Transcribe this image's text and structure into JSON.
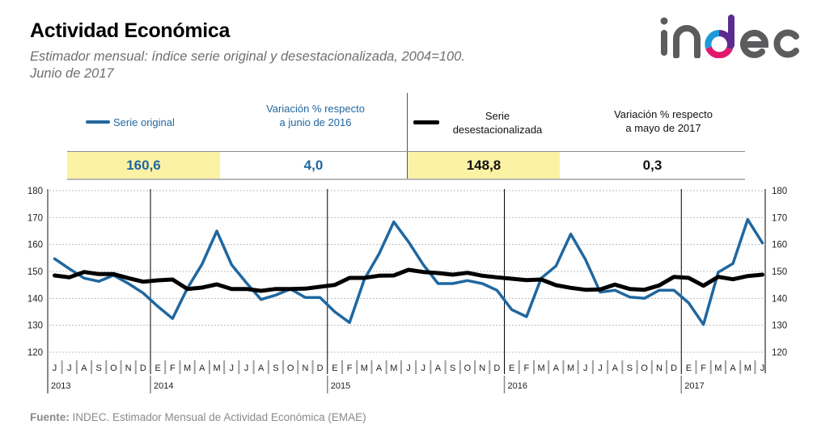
{
  "header": {
    "title": "Actividad Económica",
    "subtitle_line1": "Estimador mensual: índice serie original y desestacionalizada, 2004=100.",
    "subtitle_line2": "Junio de 2017",
    "logo_text": "indec"
  },
  "summary": {
    "original": {
      "legend_label": "Serie original",
      "value": "160,6",
      "variation_label_line1": "Variación % respecto",
      "variation_label_line2": "a junio de 2016",
      "variation_value": "4,0"
    },
    "seasonally_adjusted": {
      "legend_label_line1": "Serie",
      "legend_label_line2": "desestacionalizada",
      "value": "148,8",
      "variation_label_line1": "Variación % respecto",
      "variation_label_line2": "a mayo de 2017",
      "variation_value": "0,3"
    }
  },
  "colors": {
    "original": "#1f67a0",
    "seasonally_adjusted": "#000000",
    "highlight": "#fbf2a6",
    "logo_gray": "#5c5c5e",
    "logo_blue": "#1e9bd7",
    "logo_purple": "#5b2c8f",
    "logo_magenta": "#e0186c"
  },
  "footer": {
    "source_label": "Fuente:",
    "source_text": " INDEC. Estimador Mensual de Actividad Económica (EMAE)"
  },
  "chart_data": {
    "type": "line",
    "title": "Actividad Económica",
    "xlabel": "",
    "ylabel": "",
    "ylim": [
      120,
      180
    ],
    "yticks": [
      120,
      130,
      140,
      150,
      160,
      170,
      180
    ],
    "y_axis_sides": "left-and-right",
    "grid": true,
    "legend_placement": "top",
    "years": [
      {
        "label": "2013",
        "start_index": 0
      },
      {
        "label": "2014",
        "start_index": 7
      },
      {
        "label": "2015",
        "start_index": 19
      },
      {
        "label": "2016",
        "start_index": 31
      },
      {
        "label": "2017",
        "start_index": 43
      }
    ],
    "month_labels": [
      "J",
      "J",
      "A",
      "S",
      "O",
      "N",
      "D",
      "E",
      "F",
      "M",
      "A",
      "M",
      "J",
      "J",
      "A",
      "S",
      "O",
      "N",
      "D",
      "E",
      "F",
      "M",
      "A",
      "M",
      "J",
      "J",
      "A",
      "S",
      "O",
      "N",
      "D",
      "E",
      "F",
      "M",
      "A",
      "M",
      "J",
      "J",
      "A",
      "S",
      "O",
      "N",
      "D",
      "E",
      "F",
      "M",
      "A",
      "M",
      "J"
    ],
    "series": [
      {
        "name": "Serie original",
        "color": "#1f67a0",
        "values": [
          154.7,
          151.0,
          147.5,
          146.3,
          148.6,
          145.5,
          142.0,
          137.0,
          132.5,
          143.7,
          152.7,
          165.0,
          152.5,
          145.8,
          139.6,
          141.2,
          143.5,
          140.3,
          140.3,
          135.0,
          131.0,
          147.0,
          156.5,
          168.4,
          161.0,
          152.5,
          145.5,
          145.5,
          146.6,
          145.5,
          143.0,
          135.8,
          133.2,
          147.5,
          152.0,
          163.9,
          154.4,
          142.3,
          143.0,
          140.5,
          140.0,
          143.0,
          143.0,
          138.3,
          130.3,
          149.7,
          152.9,
          169.3,
          160.6
        ]
      },
      {
        "name": "Serie desestacionalizada",
        "color": "#000000",
        "values": [
          148.5,
          147.8,
          149.8,
          149.0,
          149.0,
          147.5,
          146.2,
          146.7,
          147.0,
          143.5,
          144.0,
          145.2,
          143.5,
          143.5,
          142.8,
          143.5,
          143.5,
          143.6,
          144.3,
          145.0,
          147.6,
          147.6,
          148.4,
          148.5,
          150.6,
          149.8,
          149.4,
          148.8,
          149.5,
          148.4,
          147.8,
          147.3,
          146.8,
          147.0,
          144.9,
          143.9,
          143.2,
          143.3,
          145.1,
          143.5,
          143.2,
          144.8,
          148.0,
          147.6,
          144.7,
          148.0,
          147.1,
          148.3,
          148.8
        ]
      }
    ]
  }
}
